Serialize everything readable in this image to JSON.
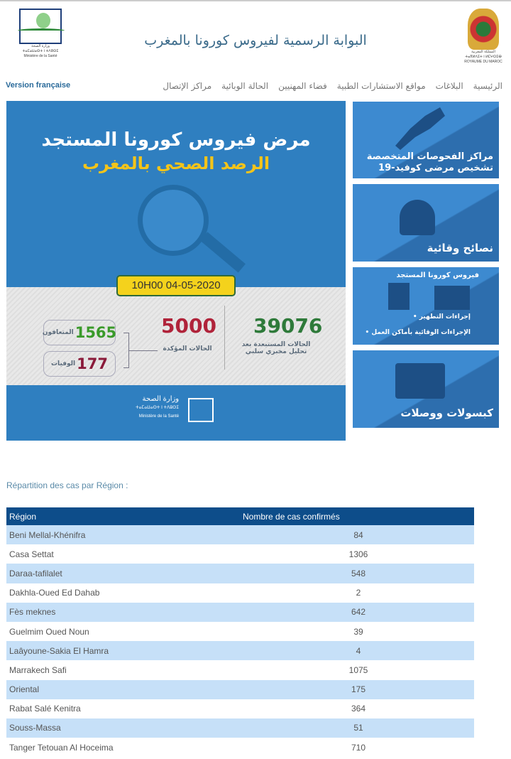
{
  "header": {
    "ministry_logo_text": [
      "وزارة الصحة",
      "ⵜⴰⵎⴰⵡⴰⵙⵜ ⵏ ⵜⴷⵓⵙⵉ",
      "Ministère de la Santé"
    ],
    "title": "البوابة الرسمية لفيروس كورونا بالمغرب",
    "crest_text": [
      "المملكة المغربية",
      "ⵜⴰⴳⵍⴷⵉⵜ ⵏ ⵍⵎⵖⵔⵉⴱ",
      "ROYAUME DU MAROC"
    ]
  },
  "nav": {
    "version": "Version française",
    "items": [
      "الرئيسية",
      "البلاغات",
      "مواقع الاستشارات الطبية",
      "فضاء المهنيين",
      "الحالة الوبائية",
      "مراكز الإتصال"
    ]
  },
  "banner": {
    "title1": "مرض فيروس كورونا المستجد",
    "title2": "الرصد الصحي بالمغرب",
    "date": "10H00  04-05-2020",
    "excluded": "39076",
    "excluded_label": "الحالات المستبعدة بعد تحليل مخبري سلبي",
    "confirmed": "5000",
    "confirmed_label": "الحالات المؤكدة",
    "recovered": "1565",
    "recovered_label": "المتعافون",
    "deaths": "177",
    "deaths_label": "الوفيات",
    "footer_logo": [
      "وزارة الصحة",
      "ⵜⴰⵎⴰⵡⴰⵙⵜ ⵏ ⵜⴷⵓⵙⵉ",
      "Ministère de la Santé"
    ]
  },
  "tiles": [
    {
      "label": "مراكز الفحوصات المتخصصة تشخيص مرضى كوفيد-19",
      "icon": "morocco-map-icon"
    },
    {
      "label": "نصائح وقائية",
      "icon": "person-idea-icon"
    },
    {
      "title": "فيروس كورونا المستجد",
      "bullets": [
        "• إجراءات التطهير",
        "• الإجراءات الوقائية بأماكن العمل"
      ],
      "icon": "disinfection-icon"
    },
    {
      "label": "كبسولات ووصلات",
      "icon": "video-play-icon"
    }
  ],
  "table": {
    "caption": "Répartition des cas par Région :",
    "headers": [
      "Région",
      "Nombre de cas confirmés"
    ],
    "rows": [
      [
        "Beni Mellal-Khénifra",
        "84"
      ],
      [
        "Casa Settat",
        "1306"
      ],
      [
        "Daraa-tafilalet",
        "548"
      ],
      [
        "Dakhla-Oued Ed Dahab",
        "2"
      ],
      [
        "Fès meknes",
        "642"
      ],
      [
        "Guelmim Oued Noun",
        "39"
      ],
      [
        "Laâyoune-Sakia El Hamra",
        "4"
      ],
      [
        "Marrakech Safi",
        "1075"
      ],
      [
        "Oriental",
        "175"
      ],
      [
        "Rabat Salé Kenitra",
        "364"
      ],
      [
        "Souss-Massa",
        "51"
      ],
      [
        "Tanger Tetouan Al Hoceima",
        "710"
      ]
    ]
  },
  "colors": {
    "brand_blue": "#2f7fc0",
    "header_blue": "#0d4d8a",
    "row_blue": "#c6e0f8",
    "green": "#2e7a3a",
    "red": "#b0233a",
    "yellow": "#f4d21c"
  }
}
